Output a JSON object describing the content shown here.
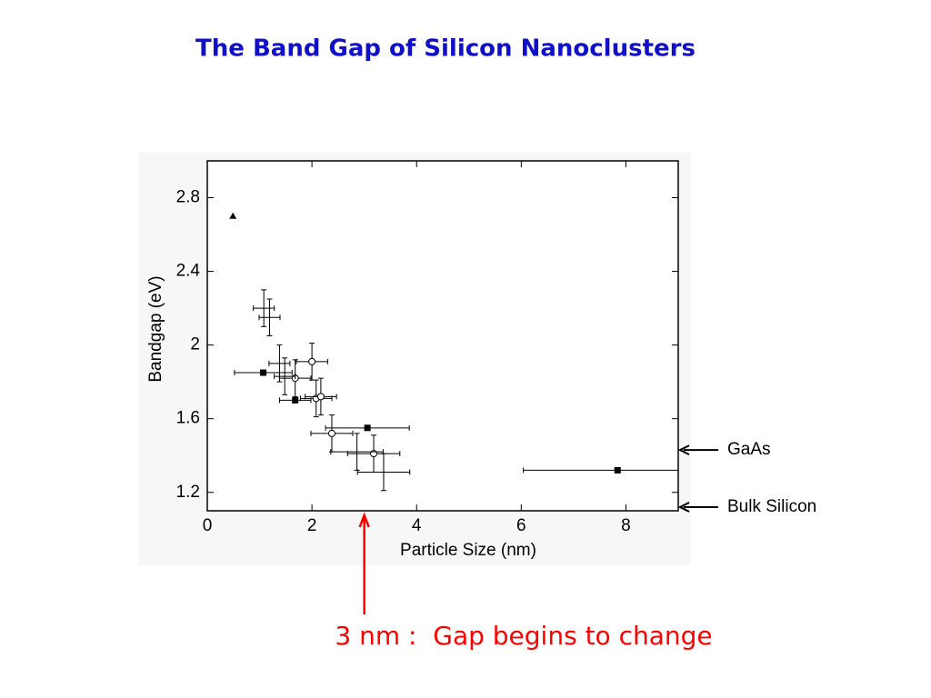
{
  "chart_data": {
    "type": "scatter",
    "title": "The Band Gap of Silicon Nanoclusters",
    "x_label": "Particle Size (nm)",
    "y_label": "Bandgap (eV)",
    "xlim": [
      0,
      9
    ],
    "ylim": [
      1.1,
      3.0
    ],
    "xticks": [
      0,
      2,
      4,
      6,
      8
    ],
    "yticks": [
      1.2,
      1.6,
      2,
      2.4,
      2.8
    ],
    "series": [
      {
        "marker": "triangle",
        "color": "#000000",
        "x": [
          0.49
        ],
        "y": [
          2.7
        ],
        "xerr": [
          0
        ],
        "yerr": [
          0
        ]
      },
      {
        "marker": "square",
        "color": "#000000",
        "x": [
          1.07,
          1.68,
          3.06,
          7.84
        ],
        "y": [
          1.85,
          1.7,
          1.55,
          1.32
        ],
        "xerr": [
          0.55,
          0.3,
          0.8,
          1.8
        ],
        "yerr": [
          0,
          0,
          0,
          0
        ]
      },
      {
        "marker": "circle",
        "color": "#000000",
        "x": [
          2.0,
          1.68,
          2.08,
          2.17,
          2.38,
          3.18
        ],
        "y": [
          1.91,
          1.82,
          1.71,
          1.72,
          1.52,
          1.41
        ],
        "xerr": [
          0.3,
          0.3,
          0.3,
          0.3,
          0.4,
          0.5
        ],
        "yerr": [
          0.1,
          0.1,
          0.1,
          0.1,
          0.1,
          0.1
        ]
      },
      {
        "marker": "none",
        "color": "#000000",
        "x": [
          1.08,
          1.19,
          1.38,
          1.48,
          2.86,
          3.37
        ],
        "y": [
          2.2,
          2.15,
          1.9,
          1.83,
          1.42,
          1.31
        ],
        "xerr": [
          0.2,
          0.2,
          0.2,
          0.2,
          0.5,
          0.5
        ],
        "yerr": [
          0.1,
          0.1,
          0.1,
          0.1,
          0.1,
          0.1
        ]
      }
    ],
    "y_annotations": [
      {
        "text": "GaAs",
        "y": 1.43
      },
      {
        "text": "Bulk Silicon",
        "y": 1.12
      }
    ],
    "x_annotation": {
      "text": "3 nm :  Gap begins to change",
      "x": 3,
      "color": "#ff0000"
    }
  }
}
